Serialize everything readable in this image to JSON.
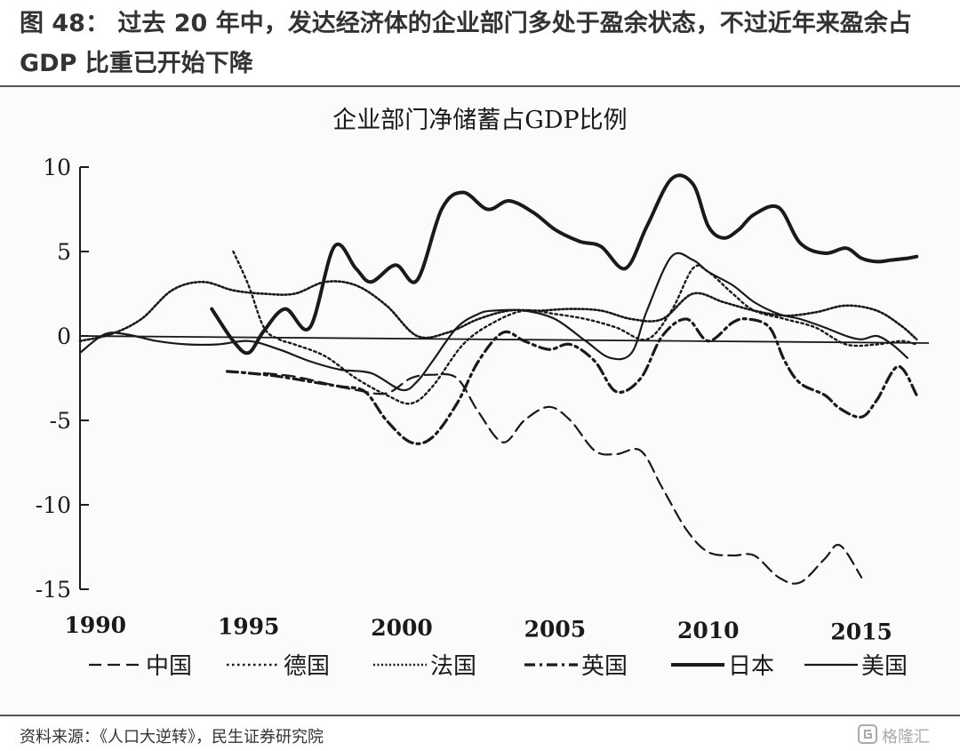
{
  "figure_title": "图 48： 过去 20 年中，发达经济体的企业部门多处于盈余状态，不过近年来盈余占 GDP 比重已开始下降",
  "source": "资料来源：《人口大逆转》，民生证券研究院",
  "watermark": "格隆汇",
  "colors": {
    "ink": "#1a1a1a",
    "header_text": "#333333",
    "rule": "#555555"
  },
  "chart_data": {
    "type": "line",
    "title": "企业部门净储蓄占GDP比例",
    "xlabel": "",
    "ylabel": "",
    "xlim": [
      1989.5,
      2017.2
    ],
    "ylim": [
      -15,
      10
    ],
    "xticks": [
      1990,
      1995,
      2000,
      2005,
      2010,
      2015
    ],
    "yticks": [
      10,
      5,
      0,
      -5,
      -10,
      -15
    ],
    "ytick_labels": [
      "10",
      "5",
      "0",
      "-5",
      "-10",
      "-15"
    ],
    "zero_line": true,
    "grid": false,
    "legend_position": "bottom",
    "series": [
      {
        "name": "中国",
        "style": "dash-long",
        "x": [
          1995.5,
          1996.5,
          1997.5,
          1998.5,
          1999.5,
          2000.3,
          2001.0,
          2001.8,
          2002.5,
          2003.3,
          2004.0,
          2004.8,
          2005.5,
          2006.3,
          2007.0,
          2007.8,
          2008.5,
          2009.3,
          2010.0,
          2010.8,
          2011.5,
          2012.3,
          2013.0,
          2013.8,
          2014.3,
          2015.0
        ],
        "y": [
          -2.2,
          -2.4,
          -2.8,
          -3.2,
          -3.4,
          -2.5,
          -2.3,
          -2.5,
          -4.5,
          -6.3,
          -5.0,
          -4.2,
          -5.0,
          -6.8,
          -7.0,
          -6.8,
          -9.0,
          -11.5,
          -12.8,
          -13.0,
          -13.0,
          -14.3,
          -14.6,
          -13.2,
          -12.4,
          -14.3
        ]
      },
      {
        "name": "德国",
        "style": "dotted",
        "x": [
          1994.5,
          1995.0,
          1995.5,
          1996.0,
          1996.5,
          1997.5,
          1998.5,
          1999.5,
          2000.3,
          2001.0,
          2002.0,
          2003.0,
          2004.0,
          2005.0,
          2006.0,
          2007.0,
          2008.0,
          2008.8,
          2009.5,
          2010.0,
          2010.8,
          2011.5,
          2012.5,
          2013.5,
          2014.5,
          2015.5,
          2016.3,
          2016.8
        ],
        "y": [
          5.0,
          3.0,
          0.5,
          -0.2,
          -0.5,
          -1.2,
          -2.5,
          -3.5,
          -4.0,
          -3.0,
          -0.5,
          0.8,
          1.5,
          1.3,
          1.0,
          0.5,
          -0.2,
          1.5,
          4.0,
          3.8,
          2.5,
          1.5,
          1.0,
          0.5,
          -0.5,
          -0.5,
          -0.3,
          -0.5
        ]
      },
      {
        "name": "法国",
        "style": "dotted-dense",
        "x": [
          1989.5,
          1990.5,
          1991.5,
          1992.5,
          1993.5,
          1994.5,
          1995.5,
          1996.5,
          1997.5,
          1998.5,
          1999.5,
          2000.5,
          2001.5,
          2002.5,
          2003.5,
          2004.5,
          2005.5,
          2006.5,
          2007.5,
          2008.5,
          2009.5,
          2010.5,
          2011.5,
          2012.5,
          2013.5,
          2014.5,
          2015.5,
          2016.3,
          2016.8
        ],
        "y": [
          -0.3,
          0.1,
          1.0,
          2.7,
          3.2,
          2.7,
          2.5,
          2.5,
          3.2,
          3.0,
          1.8,
          0.0,
          0.2,
          1.0,
          1.5,
          1.5,
          1.6,
          1.5,
          1.0,
          1.0,
          2.5,
          2.0,
          1.5,
          1.2,
          1.4,
          1.8,
          1.5,
          0.6,
          -0.2
        ]
      },
      {
        "name": "英国",
        "style": "dash-dot",
        "x": [
          1994.3,
          1995.0,
          1996.0,
          1997.0,
          1998.0,
          1998.8,
          1999.5,
          2000.3,
          2001.0,
          2001.8,
          2002.5,
          2003.3,
          2004.0,
          2004.8,
          2005.5,
          2006.3,
          2007.0,
          2007.8,
          2008.5,
          2009.3,
          2010.0,
          2010.8,
          2011.3,
          2012.0,
          2012.5,
          2013.0,
          2013.8,
          2014.3,
          2015.0,
          2015.5,
          2016.2,
          2016.8
        ],
        "y": [
          -2.1,
          -2.2,
          -2.4,
          -2.7,
          -3.0,
          -3.3,
          -5.0,
          -6.3,
          -6.0,
          -4.0,
          -1.5,
          0.2,
          -0.3,
          -0.8,
          -0.5,
          -1.5,
          -3.3,
          -2.5,
          0.0,
          1.0,
          -0.3,
          0.8,
          1.0,
          0.5,
          -1.5,
          -2.8,
          -3.5,
          -4.3,
          -4.8,
          -3.8,
          -1.8,
          -3.5
        ]
      },
      {
        "name": "日本",
        "style": "solid-thick",
        "x": [
          1993.8,
          1994.5,
          1995.0,
          1995.5,
          1996.2,
          1997.0,
          1997.8,
          1998.5,
          1999.0,
          1999.8,
          2000.5,
          2001.3,
          2002.0,
          2002.8,
          2003.5,
          2004.3,
          2005.0,
          2005.8,
          2006.5,
          2007.3,
          2008.0,
          2008.8,
          2009.5,
          2010.0,
          2010.5,
          2011.0,
          2011.5,
          2012.3,
          2013.0,
          2013.8,
          2014.5,
          2015.0,
          2015.5,
          2016.0,
          2016.5,
          2016.8
        ],
        "y": [
          1.6,
          -0.3,
          -1.0,
          0.3,
          1.6,
          0.5,
          5.3,
          4.0,
          3.2,
          4.2,
          3.3,
          7.5,
          8.5,
          7.5,
          8.0,
          7.3,
          6.3,
          5.6,
          5.3,
          4.0,
          6.5,
          9.3,
          9.0,
          6.5,
          5.8,
          6.3,
          7.2,
          7.6,
          5.5,
          4.9,
          5.2,
          4.6,
          4.4,
          4.5,
          4.6,
          4.7
        ]
      },
      {
        "name": "美国",
        "style": "solid-thin",
        "x": [
          1989.5,
          1990.3,
          1991.0,
          1992.0,
          1993.0,
          1994.0,
          1995.0,
          1996.0,
          1997.0,
          1998.0,
          1999.0,
          2000.0,
          2000.5,
          2001.0,
          2001.8,
          2002.5,
          2003.0,
          2004.0,
          2005.0,
          2006.0,
          2006.8,
          2007.5,
          2008.0,
          2008.8,
          2009.5,
          2010.0,
          2010.8,
          2011.5,
          2012.3,
          2013.0,
          2013.8,
          2014.5,
          2015.0,
          2015.5,
          2016.0,
          2016.5
        ],
        "y": [
          -1.0,
          0.1,
          0.1,
          -0.3,
          -0.5,
          -0.5,
          -0.3,
          -0.8,
          -1.5,
          -2.0,
          -2.2,
          -3.2,
          -2.7,
          -1.5,
          0.5,
          1.3,
          1.5,
          1.5,
          1.0,
          -0.3,
          -1.3,
          -1.0,
          1.5,
          4.7,
          4.5,
          3.8,
          3.0,
          2.0,
          1.3,
          1.0,
          0.5,
          0.0,
          -0.2,
          0.0,
          -0.5,
          -1.3
        ]
      }
    ]
  }
}
